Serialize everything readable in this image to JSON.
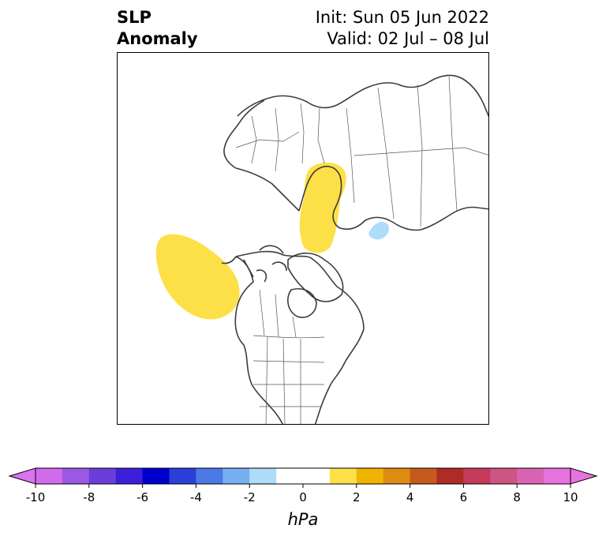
{
  "title": {
    "left_line1": "SLP",
    "left_line2": "Anomaly",
    "init": "Init: Sun 05 Jun 2022",
    "valid": "Valid: 02 Jul – 08 Jul"
  },
  "map": {
    "projection": "north-polar-stereographic",
    "anomaly_regions": [
      {
        "id": "northeast-pacific-positive",
        "sign": "positive",
        "color": "#fde047"
      },
      {
        "id": "scandinavia-barents-positive",
        "sign": "positive",
        "color": "#fde047"
      },
      {
        "id": "east-siberia-negative",
        "sign": "negative",
        "color": "#aedcf9"
      }
    ]
  },
  "colorbar": {
    "unit": "hPa",
    "tick_labels": [
      "-10",
      "-8",
      "-6",
      "-4",
      "-2",
      "0",
      "2",
      "4",
      "6",
      "8",
      "10"
    ],
    "colors": [
      "#d36bed",
      "#9b58e3",
      "#6c3ed9",
      "#3b1fd9",
      "#0000cc",
      "#2b3fd9",
      "#4c79e6",
      "#76b0f2",
      "#aedcf9",
      "#ffffff",
      "#ffffff",
      "#fde047",
      "#f0b400",
      "#de8c12",
      "#c65a1d",
      "#b02a27",
      "#c43a5a",
      "#cc5584",
      "#d963b3",
      "#e873de"
    ],
    "low_extend_color": "#d973ee",
    "high_extend_color": "#e873de"
  }
}
